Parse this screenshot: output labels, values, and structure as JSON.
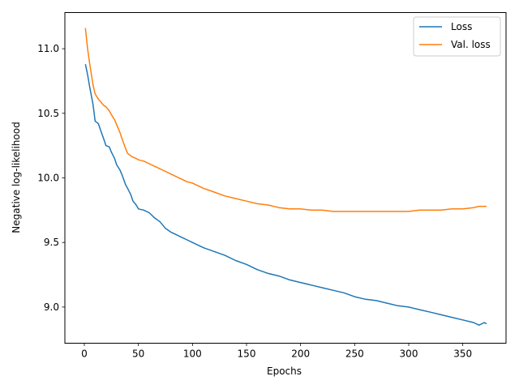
{
  "chart_data": {
    "type": "line",
    "title": "",
    "xlabel": "Epochs",
    "ylabel": "Negative log-likelihood",
    "xlim": [
      -18,
      390
    ],
    "ylim": [
      8.72,
      11.28
    ],
    "xticks": [
      0,
      50,
      100,
      150,
      200,
      250,
      300,
      350
    ],
    "yticks": [
      9.0,
      9.5,
      10.0,
      10.5,
      11.0
    ],
    "ytick_labels": [
      "9.0",
      "9.5",
      "10.0",
      "10.5",
      "11.0"
    ],
    "grid": false,
    "legend_position": "top-right",
    "series": [
      {
        "name": "Loss",
        "color": "#1f77b4",
        "x": [
          1,
          3,
          5,
          8,
          10,
          13,
          15,
          18,
          20,
          23,
          25,
          28,
          30,
          33,
          35,
          38,
          40,
          43,
          45,
          48,
          50,
          55,
          60,
          65,
          70,
          75,
          80,
          85,
          90,
          95,
          100,
          110,
          120,
          130,
          140,
          150,
          160,
          170,
          180,
          190,
          200,
          210,
          220,
          230,
          240,
          250,
          260,
          270,
          280,
          290,
          300,
          310,
          320,
          330,
          340,
          350,
          360,
          365,
          370,
          372
        ],
        "values": [
          10.88,
          10.8,
          10.7,
          10.57,
          10.44,
          10.42,
          10.37,
          10.3,
          10.25,
          10.24,
          10.2,
          10.15,
          10.1,
          10.06,
          10.02,
          9.95,
          9.92,
          9.87,
          9.82,
          9.79,
          9.76,
          9.75,
          9.73,
          9.69,
          9.66,
          9.61,
          9.58,
          9.56,
          9.54,
          9.52,
          9.5,
          9.46,
          9.43,
          9.4,
          9.36,
          9.33,
          9.29,
          9.26,
          9.24,
          9.21,
          9.19,
          9.17,
          9.15,
          9.13,
          9.11,
          9.08,
          9.06,
          9.05,
          9.03,
          9.01,
          9.0,
          8.98,
          8.96,
          8.94,
          8.92,
          8.9,
          8.88,
          8.86,
          8.88,
          8.87
        ]
      },
      {
        "name": "Val. loss",
        "color": "#ff7f0e",
        "x": [
          1,
          3,
          5,
          8,
          10,
          13,
          15,
          18,
          20,
          23,
          25,
          28,
          30,
          33,
          35,
          38,
          40,
          43,
          45,
          48,
          50,
          55,
          60,
          65,
          70,
          75,
          80,
          85,
          90,
          95,
          100,
          110,
          120,
          130,
          140,
          150,
          160,
          170,
          180,
          190,
          200,
          210,
          220,
          230,
          240,
          250,
          260,
          270,
          280,
          290,
          300,
          310,
          320,
          330,
          340,
          350,
          360,
          365,
          370,
          372
        ],
        "values": [
          11.16,
          11.0,
          10.88,
          10.72,
          10.65,
          10.61,
          10.59,
          10.56,
          10.55,
          10.52,
          10.49,
          10.45,
          10.41,
          10.35,
          10.3,
          10.23,
          10.19,
          10.17,
          10.16,
          10.15,
          10.14,
          10.13,
          10.11,
          10.09,
          10.07,
          10.05,
          10.03,
          10.01,
          9.99,
          9.97,
          9.96,
          9.92,
          9.89,
          9.86,
          9.84,
          9.82,
          9.8,
          9.79,
          9.77,
          9.76,
          9.76,
          9.75,
          9.75,
          9.74,
          9.74,
          9.74,
          9.74,
          9.74,
          9.74,
          9.74,
          9.74,
          9.75,
          9.75,
          9.75,
          9.76,
          9.76,
          9.77,
          9.78,
          9.78,
          9.78
        ]
      }
    ]
  }
}
